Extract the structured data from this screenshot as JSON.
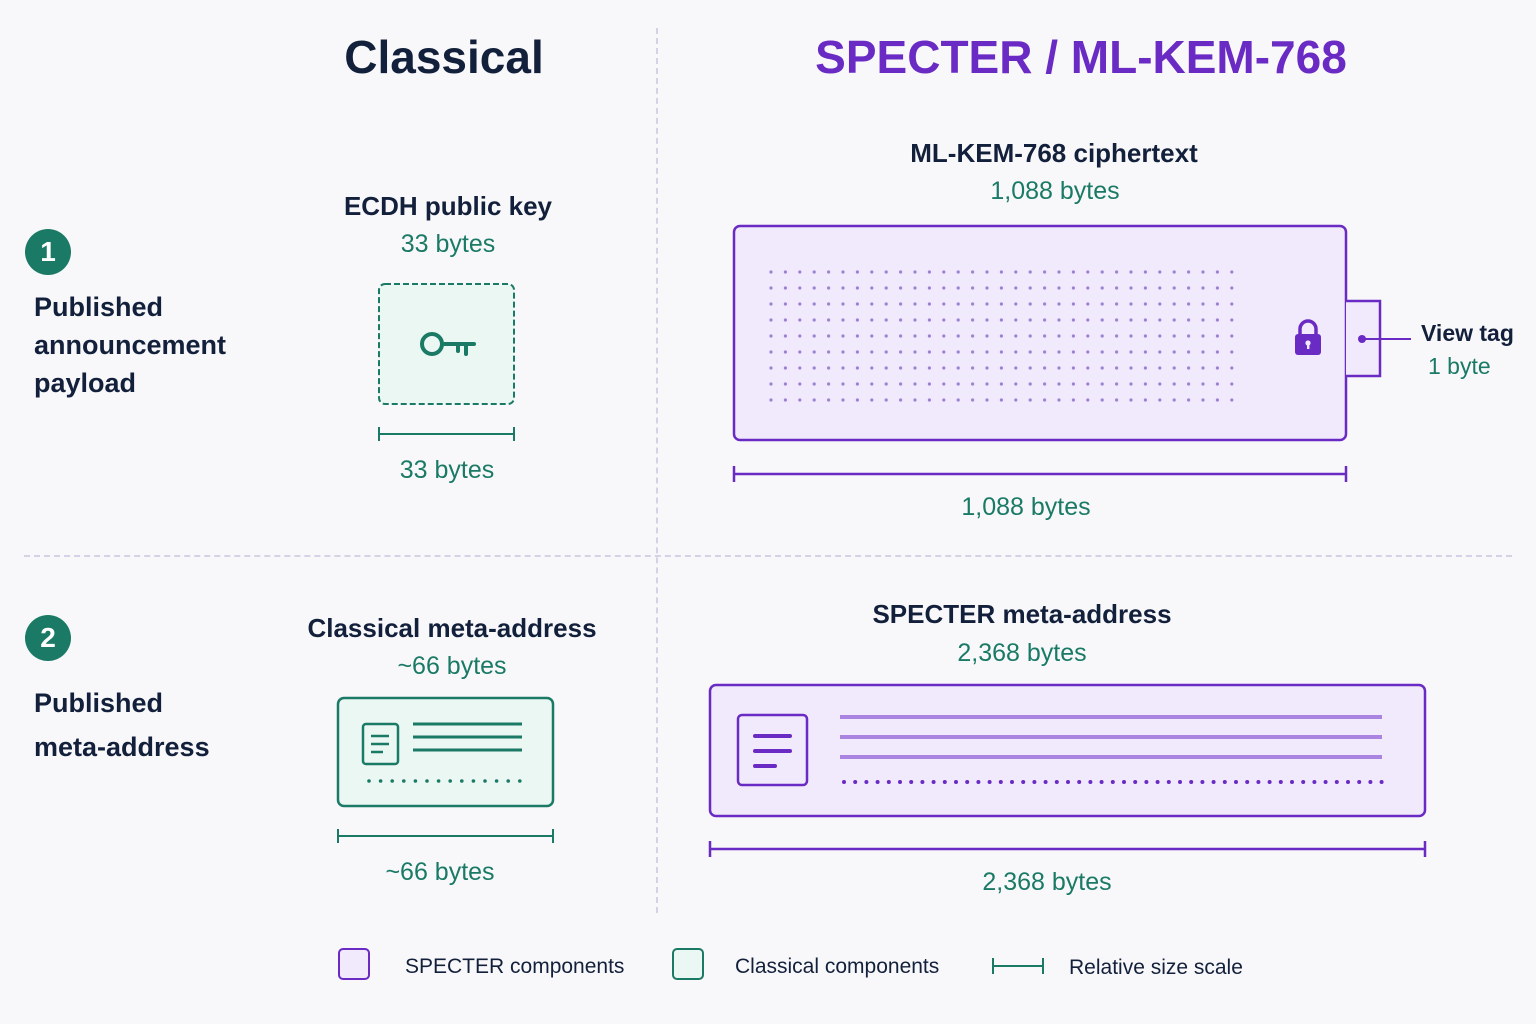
{
  "columns": {
    "classical": "Classical",
    "specter": "SPECTER / ML-KEM-768"
  },
  "rows": [
    {
      "number": "1",
      "label_lines": [
        "Published",
        "announcement",
        "payload"
      ]
    },
    {
      "number": "2",
      "label_lines": [
        "Published",
        "meta-address"
      ]
    }
  ],
  "row1": {
    "classical": {
      "title": "ECDH public key",
      "size": "33 bytes",
      "scale_label": "33 bytes"
    },
    "specter": {
      "title": "ML-KEM-768 ciphertext",
      "size": "1,088 bytes",
      "scale_label": "1,088 bytes",
      "view_tag_title": "View tag",
      "view_tag_size": "1 byte"
    }
  },
  "row2": {
    "classical": {
      "title": "Classical meta-address",
      "size": "~66 bytes",
      "scale_label": "~66 bytes"
    },
    "specter": {
      "title": "SPECTER meta-address",
      "size": "2,368 bytes",
      "scale_label": "2,368 bytes"
    }
  },
  "legend": {
    "specter": "SPECTER components",
    "classical": "Classical components",
    "scale": "Relative size scale"
  },
  "icons": [
    "key-icon",
    "lock-icon",
    "document-icon"
  ],
  "colors": {
    "navy": "#13203b",
    "teal": "#1a7a66",
    "purple": "#6a2bc4",
    "specter_fill": "#f1eafd",
    "classical_fill": "#eaf7f2"
  }
}
